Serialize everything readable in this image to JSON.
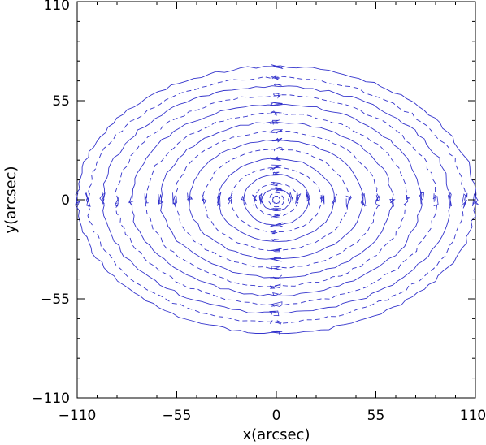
{
  "chart_data": {
    "type": "contour",
    "title": "",
    "xlabel": "x(arcsec)",
    "ylabel": "y(arcsec)",
    "xlim": [
      -110,
      110
    ],
    "ylim": [
      -110,
      110
    ],
    "xticks": [
      -110,
      -55,
      0,
      55,
      110
    ],
    "yticks": [
      -110,
      -55,
      0,
      55,
      110
    ],
    "xtick_labels": [
      "−110",
      "−55",
      "0",
      "55",
      "110"
    ],
    "ytick_labels": [
      "−110",
      "−55",
      "0",
      "55",
      "110"
    ],
    "grid": false,
    "legend": "none",
    "field_extent": {
      "x_semi_axis": 110,
      "y_semi_axis": 75
    },
    "contour_levels": [
      {
        "a": 2,
        "b": 2,
        "solid": true
      },
      {
        "a": 4,
        "b": 4,
        "solid": false
      },
      {
        "a": 8,
        "b": 6,
        "solid": true
      },
      {
        "a": 12,
        "b": 9,
        "solid": false
      },
      {
        "a": 18,
        "b": 14,
        "solid": true
      },
      {
        "a": 25,
        "b": 18,
        "solid": false
      },
      {
        "a": 32,
        "b": 23,
        "solid": true
      },
      {
        "a": 40,
        "b": 28,
        "solid": false
      },
      {
        "a": 48,
        "b": 33,
        "solid": true
      },
      {
        "a": 56,
        "b": 38,
        "solid": false
      },
      {
        "a": 64,
        "b": 43,
        "solid": true
      },
      {
        "a": 72,
        "b": 48,
        "solid": false
      },
      {
        "a": 80,
        "b": 53,
        "solid": true
      },
      {
        "a": 88,
        "b": 58,
        "solid": false
      },
      {
        "a": 96,
        "b": 63,
        "solid": true
      },
      {
        "a": 104,
        "b": 68,
        "solid": false
      },
      {
        "a": 110,
        "b": 74,
        "solid": true
      }
    ],
    "line_color": "#3333cc",
    "axis_color": "#000000"
  }
}
